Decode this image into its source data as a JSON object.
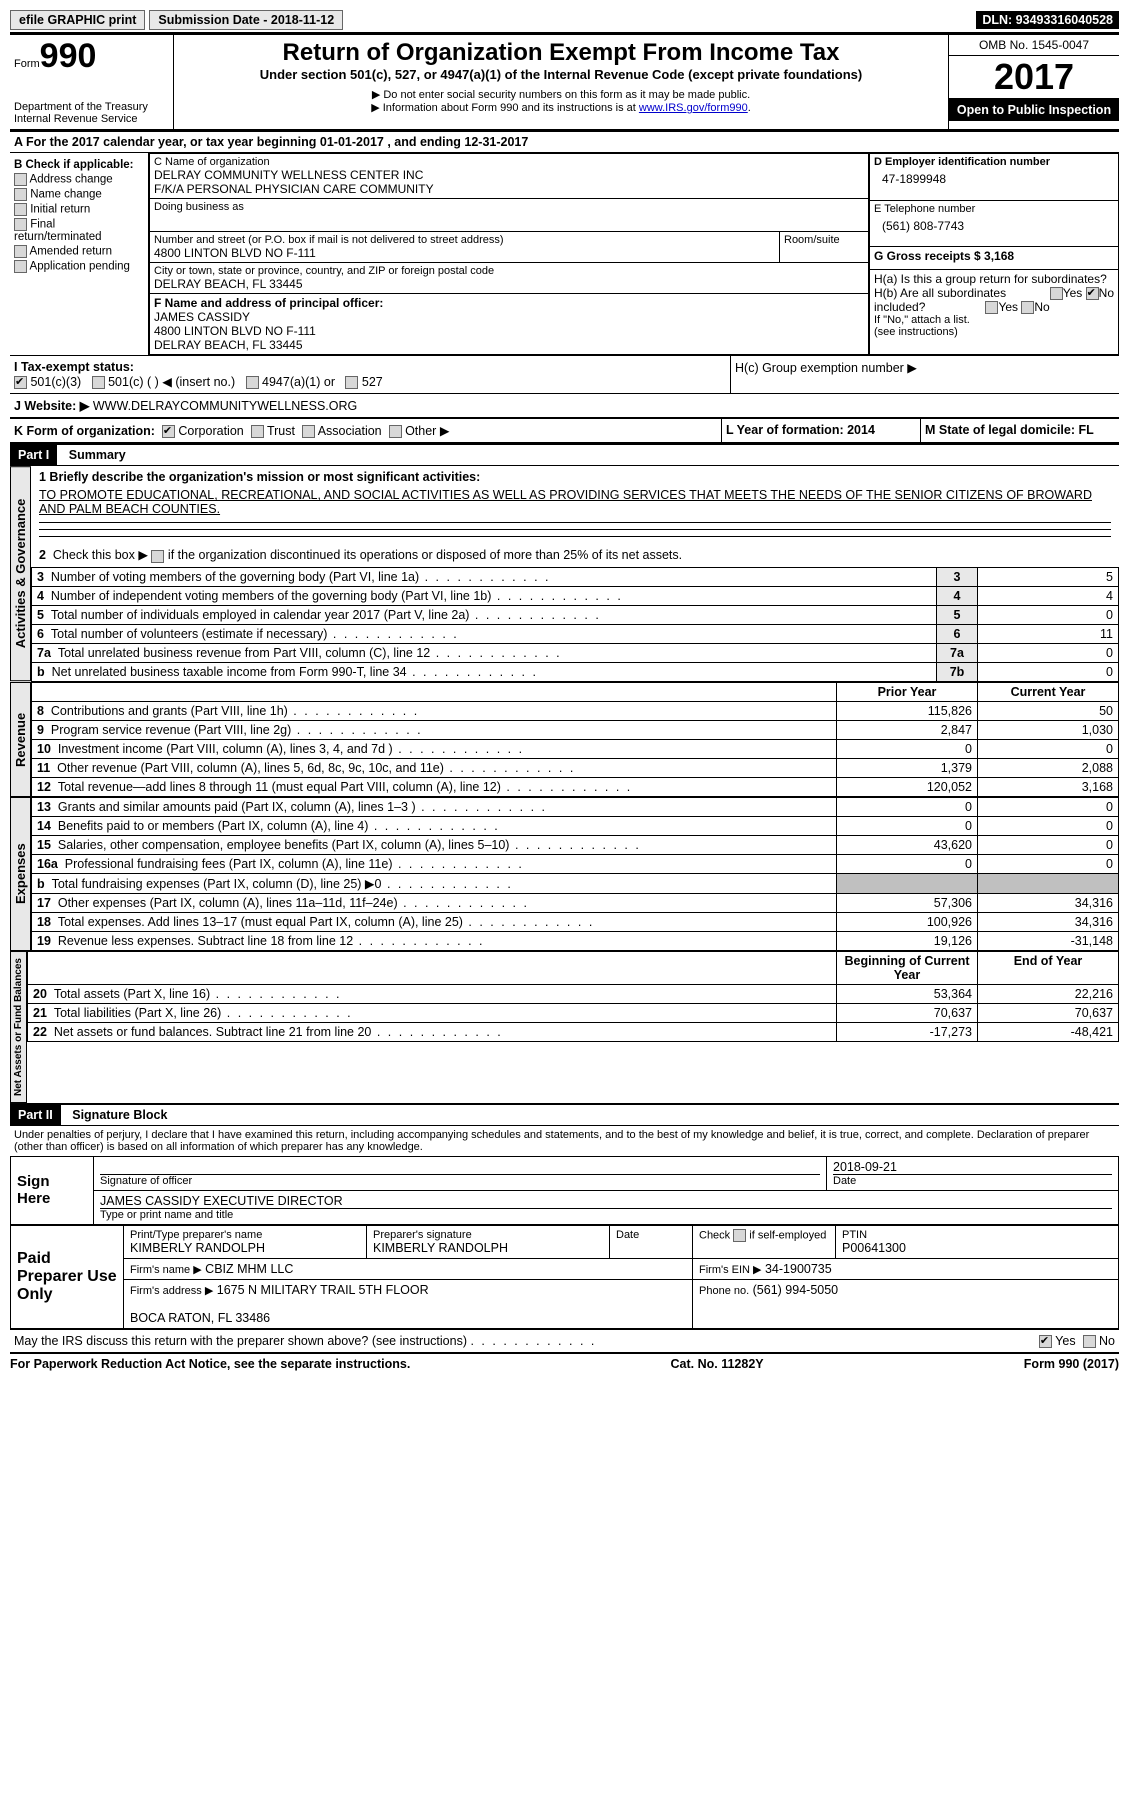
{
  "topbar": {
    "efile": "efile GRAPHIC print",
    "submission": "Submission Date - 2018-11-12",
    "dln": "DLN: 93493316040528"
  },
  "header": {
    "form_label": "Form",
    "form_num": "990",
    "dept": "Department of the Treasury",
    "irs": "Internal Revenue Service",
    "title": "Return of Organization Exempt From Income Tax",
    "subtitle": "Under section 501(c), 527, or 4947(a)(1) of the Internal Revenue Code (except private foundations)",
    "note1": "▶ Do not enter social security numbers on this form as it may be made public.",
    "note2_a": "▶ Information about Form 990 and its instructions is at ",
    "note2_link": "www.IRS.gov/form990",
    "omb": "OMB No. 1545-0047",
    "year": "2017",
    "open": "Open to Public Inspection"
  },
  "section_a": {
    "intro": "A  For the 2017 calendar year, or tax year beginning 01-01-2017   , and ending 12-31-2017",
    "b_label": "B Check if applicable:",
    "checks": [
      "Address change",
      "Name change",
      "Initial return",
      "Final return/terminated",
      "Amended return",
      "Application pending"
    ],
    "c_label": "C Name of organization",
    "org_name": "DELRAY COMMUNITY WELLNESS CENTER INC\nF/K/A PERSONAL PHYSICIAN CARE COMMUNITY",
    "dba": "Doing business as",
    "street_label": "Number and street (or P.O. box if mail is not delivered to street address)",
    "street": "4800 LINTON BLVD NO F-111",
    "room_label": "Room/suite",
    "city_label": "City or town, state or province, country, and ZIP or foreign postal code",
    "city": "DELRAY BEACH, FL  33445",
    "d_label": "D Employer identification number",
    "ein": "47-1899948",
    "e_label": "E Telephone number",
    "phone": "(561) 808-7743",
    "g_label": "G Gross receipts $ 3,168",
    "f_label": "F  Name and address of principal officer:",
    "officer": "JAMES CASSIDY\n4800 LINTON BLVD NO F-111\nDELRAY BEACH, FL  33445",
    "ha": "H(a)  Is this a group return for subordinates?",
    "hb": "H(b)  Are all subordinates included?",
    "hb_note": "If \"No,\" attach a list. (see instructions)",
    "hc": "H(c)  Group exemption number ▶",
    "yes": "Yes",
    "no": "No",
    "i_label": "I  Tax-exempt status:",
    "i_501c3": "501(c)(3)",
    "i_501c": "501(c) (  ) ◀ (insert no.)",
    "i_4947": "4947(a)(1) or",
    "i_527": "527",
    "j_label": "J  Website: ▶",
    "website": "WWW.DELRAYCOMMUNITYWELLNESS.ORG",
    "k_label": "K Form of organization:",
    "k_corp": "Corporation",
    "k_trust": "Trust",
    "k_assoc": "Association",
    "k_other": "Other ▶",
    "l_label": "L Year of formation: 2014",
    "m_label": "M State of legal domicile: FL"
  },
  "part1": {
    "hdr": "Part I",
    "title": "Summary",
    "l1_label": "1  Briefly describe the organization's mission or most significant activities:",
    "mission": "TO PROMOTE EDUCATIONAL, RECREATIONAL, AND SOCIAL ACTIVITIES AS WELL AS PROVIDING SERVICES THAT MEETS THE NEEDS OF THE SENIOR CITIZENS OF BROWARD AND PALM BEACH COUNTIES.",
    "l2": "2   Check this box ▶        if the organization discontinued its operations or disposed of more than 25% of its net assets.",
    "gov_label": "Activities & Governance",
    "rev_label": "Revenue",
    "exp_label": "Expenses",
    "net_label": "Net Assets or Fund Balances",
    "rows_gov": [
      {
        "n": "3",
        "t": "Number of voting members of the governing body (Part VI, line 1a)",
        "c": "3",
        "v": "5"
      },
      {
        "n": "4",
        "t": "Number of independent voting members of the governing body (Part VI, line 1b)",
        "c": "4",
        "v": "4"
      },
      {
        "n": "5",
        "t": "Total number of individuals employed in calendar year 2017 (Part V, line 2a)",
        "c": "5",
        "v": "0"
      },
      {
        "n": "6",
        "t": "Total number of volunteers (estimate if necessary)",
        "c": "6",
        "v": "11"
      },
      {
        "n": "7a",
        "t": "Total unrelated business revenue from Part VIII, column (C), line 12",
        "c": "7a",
        "v": "0"
      },
      {
        "n": "b",
        "t": "Net unrelated business taxable income from Form 990-T, line 34",
        "c": "7b",
        "v": "0"
      }
    ],
    "prior": "Prior Year",
    "current": "Current Year",
    "rows_rev": [
      {
        "n": "8",
        "t": "Contributions and grants (Part VIII, line 1h)",
        "p": "115,826",
        "c": "50"
      },
      {
        "n": "9",
        "t": "Program service revenue (Part VIII, line 2g)",
        "p": "2,847",
        "c": "1,030"
      },
      {
        "n": "10",
        "t": "Investment income (Part VIII, column (A), lines 3, 4, and 7d )",
        "p": "0",
        "c": "0"
      },
      {
        "n": "11",
        "t": "Other revenue (Part VIII, column (A), lines 5, 6d, 8c, 9c, 10c, and 11e)",
        "p": "1,379",
        "c": "2,088"
      },
      {
        "n": "12",
        "t": "Total revenue—add lines 8 through 11 (must equal Part VIII, column (A), line 12)",
        "p": "120,052",
        "c": "3,168"
      }
    ],
    "rows_exp": [
      {
        "n": "13",
        "t": "Grants and similar amounts paid (Part IX, column (A), lines 1–3 )",
        "p": "0",
        "c": "0"
      },
      {
        "n": "14",
        "t": "Benefits paid to or members (Part IX, column (A), line 4)",
        "p": "0",
        "c": "0"
      },
      {
        "n": "15",
        "t": "Salaries, other compensation, employee benefits (Part IX, column (A), lines 5–10)",
        "p": "43,620",
        "c": "0"
      },
      {
        "n": "16a",
        "t": "Professional fundraising fees (Part IX, column (A), line 11e)",
        "p": "0",
        "c": "0"
      },
      {
        "n": "b",
        "t": "Total fundraising expenses (Part IX, column (D), line 25) ▶0",
        "p": "shade",
        "c": "shade"
      },
      {
        "n": "17",
        "t": "Other expenses (Part IX, column (A), lines 11a–11d, 11f–24e)",
        "p": "57,306",
        "c": "34,316"
      },
      {
        "n": "18",
        "t": "Total expenses. Add lines 13–17 (must equal Part IX, column (A), line 25)",
        "p": "100,926",
        "c": "34,316"
      },
      {
        "n": "19",
        "t": "Revenue less expenses. Subtract line 18 from line 12",
        "p": "19,126",
        "c": "-31,148"
      }
    ],
    "begin": "Beginning of Current Year",
    "end": "End of Year",
    "rows_net": [
      {
        "n": "20",
        "t": "Total assets (Part X, line 16)",
        "p": "53,364",
        "c": "22,216"
      },
      {
        "n": "21",
        "t": "Total liabilities (Part X, line 26)",
        "p": "70,637",
        "c": "70,637"
      },
      {
        "n": "22",
        "t": "Net assets or fund balances. Subtract line 21 from line 20",
        "p": "-17,273",
        "c": "-48,421"
      }
    ]
  },
  "part2": {
    "hdr": "Part II",
    "title": "Signature Block",
    "decl": "Under penalties of perjury, I declare that I have examined this return, including accompanying schedules and statements, and to the best of my knowledge and belief, it is true, correct, and complete. Declaration of preparer (other than officer) is based on all information of which preparer has any knowledge.",
    "sign_here": "Sign Here",
    "sig_officer": "Signature of officer",
    "date": "Date",
    "date_val": "2018-09-21",
    "name_title": "JAMES CASSIDY EXECUTIVE DIRECTOR",
    "type_print": "Type or print name and title",
    "paid": "Paid Preparer Use Only",
    "prep_name_l": "Print/Type preparer's name",
    "prep_name": "KIMBERLY RANDOLPH",
    "prep_sig_l": "Preparer's signature",
    "prep_sig": "KIMBERLY RANDOLPH",
    "date_l": "Date",
    "check_se": "Check        if self-employed",
    "ptin_l": "PTIN",
    "ptin": "P00641300",
    "firm_name_l": "Firm's name    ▶",
    "firm_name": "CBIZ MHM LLC",
    "firm_ein_l": "Firm's EIN ▶",
    "firm_ein": "34-1900735",
    "firm_addr_l": "Firm's address ▶",
    "firm_addr": "1675 N MILITARY TRAIL 5TH FLOOR\n\nBOCA RATON, FL  33486",
    "firm_phone_l": "Phone no.",
    "firm_phone": "(561) 994-5050",
    "discuss": "May the IRS discuss this return with the preparer shown above? (see instructions)"
  },
  "footer": {
    "pra": "For Paperwork Reduction Act Notice, see the separate instructions.",
    "cat": "Cat. No. 11282Y",
    "form": "Form 990 (2017)"
  }
}
